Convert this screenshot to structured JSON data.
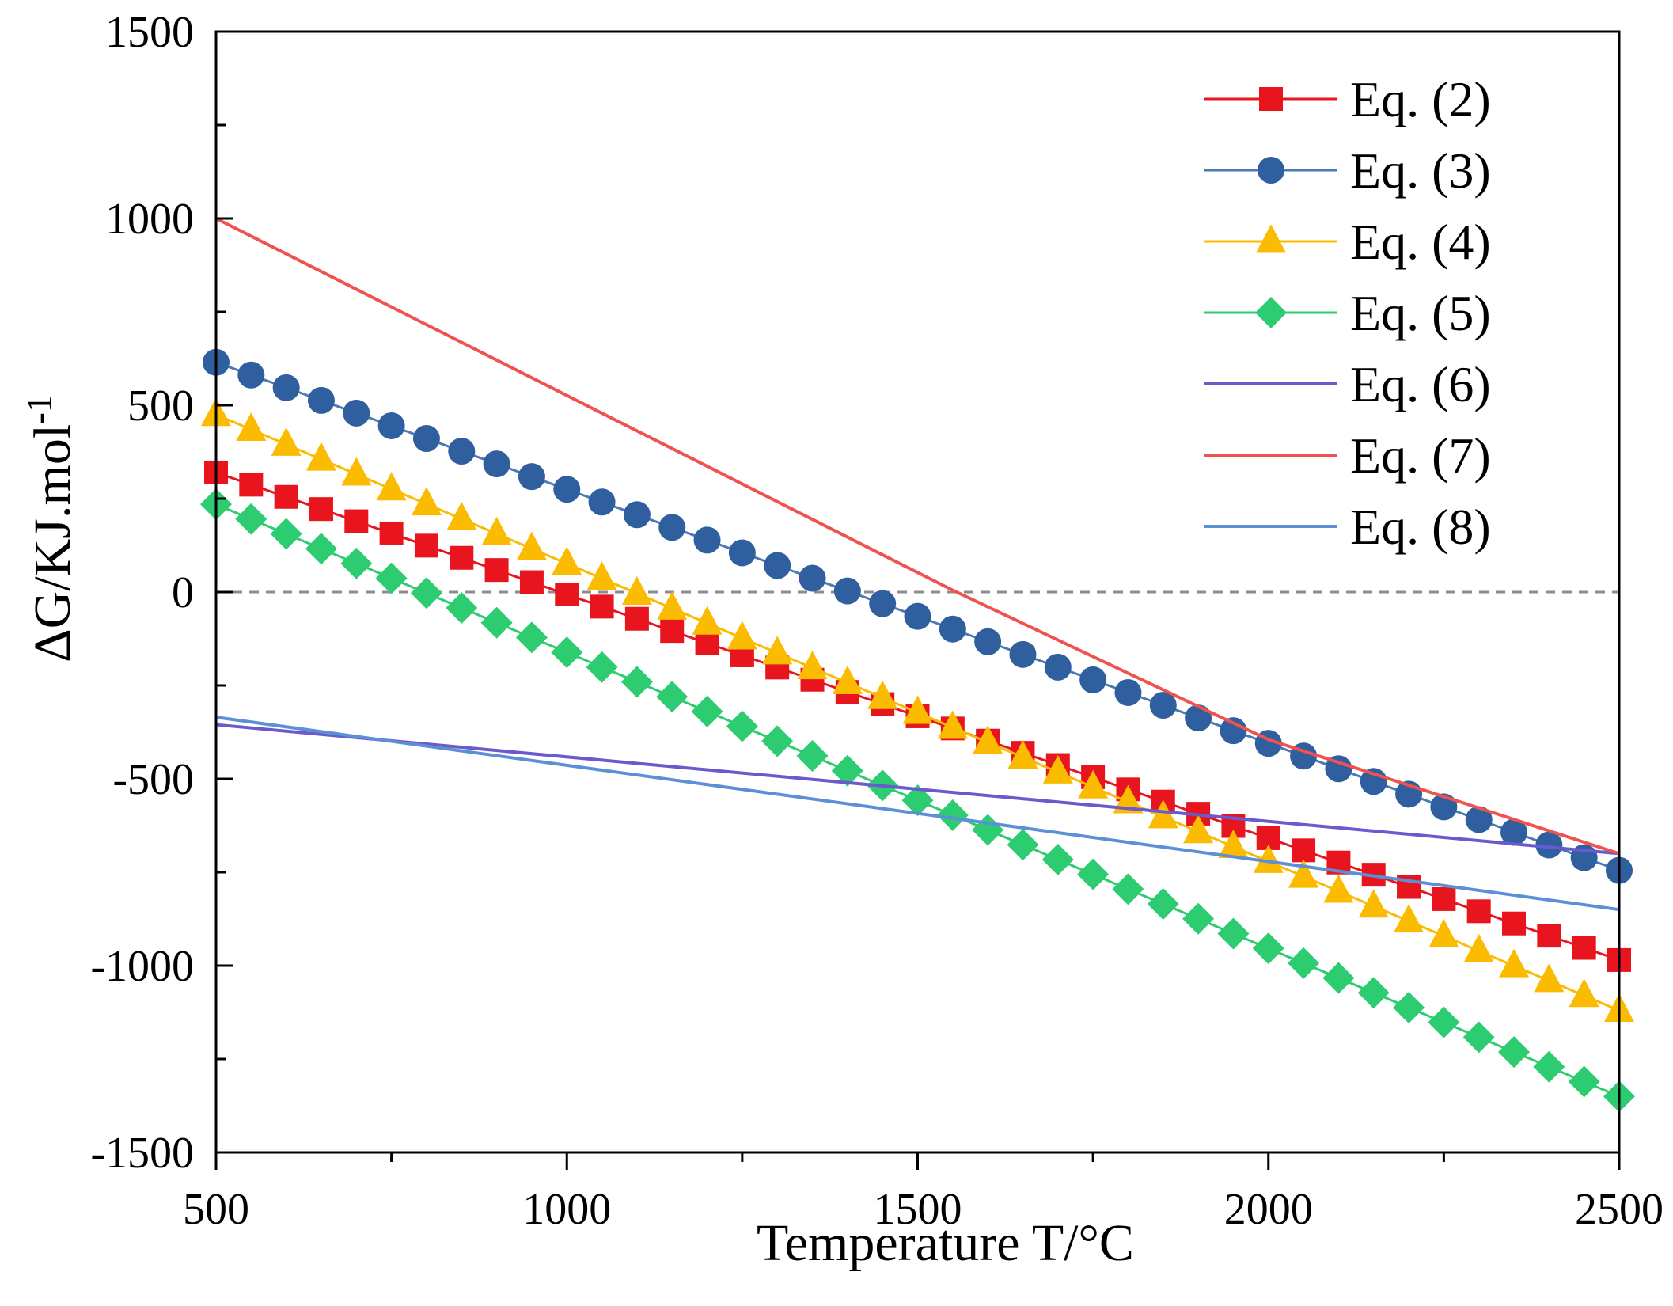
{
  "chart_data": {
    "type": "line",
    "title": "",
    "xlabel": "Temperature T/°C",
    "ylabel_main": "ΔG/KJ.mol",
    "ylabel_sup": "-1",
    "xlim": [
      500,
      2500
    ],
    "ylim": [
      -1500,
      1500
    ],
    "x_ticks": [
      500,
      1000,
      1500,
      2000,
      2500
    ],
    "x_tick_labels": [
      "500",
      "1000",
      "1500",
      "2000",
      "2500"
    ],
    "y_ticks": [
      -1500,
      -1000,
      -500,
      0,
      500,
      1000,
      1500
    ],
    "y_tick_labels": [
      "-1500",
      "-1000",
      "-500",
      "0",
      "500",
      "1000",
      "1500"
    ],
    "grid": false,
    "zero_reference_line": true,
    "legend_position": "top-right",
    "series": [
      {
        "name": "Eq. (2)",
        "color": "#e8141e",
        "line_color": "#e8141e",
        "marker": "square",
        "x": [
          500,
          2500
        ],
        "y": [
          320,
          -985
        ]
      },
      {
        "name": "Eq. (3)",
        "color": "#2f5f9e",
        "line_color": "#4a7ab5",
        "marker": "circle",
        "x": [
          500,
          2500
        ],
        "y": [
          615,
          -745
        ]
      },
      {
        "name": "Eq. (4)",
        "color": "#fbbb00",
        "line_color": "#fbbb00",
        "marker": "triangle",
        "x": [
          500,
          2500
        ],
        "y": [
          475,
          -1120
        ]
      },
      {
        "name": "Eq. (5)",
        "color": "#2ecc71",
        "line_color": "#2ecc71",
        "marker": "diamond",
        "x": [
          500,
          2500
        ],
        "y": [
          235,
          -1350
        ]
      },
      {
        "name": "Eq. (6)",
        "color": "#6a5acd",
        "line_color": "#6a5acd",
        "marker": "none",
        "x": [
          500,
          2500
        ],
        "y": [
          -355,
          -700
        ]
      },
      {
        "name": "Eq. (7)",
        "color": "#ef5350",
        "line_color": "#ef5350",
        "marker": "none",
        "x": [
          500,
          1550,
          2000,
          2500
        ],
        "y": [
          1000,
          5,
          -395,
          -700
        ]
      },
      {
        "name": "Eq. (8)",
        "color": "#5b8fd6",
        "line_color": "#5b8fd6",
        "marker": "none",
        "x": [
          500,
          2500
        ],
        "y": [
          -335,
          -850
        ]
      }
    ]
  }
}
